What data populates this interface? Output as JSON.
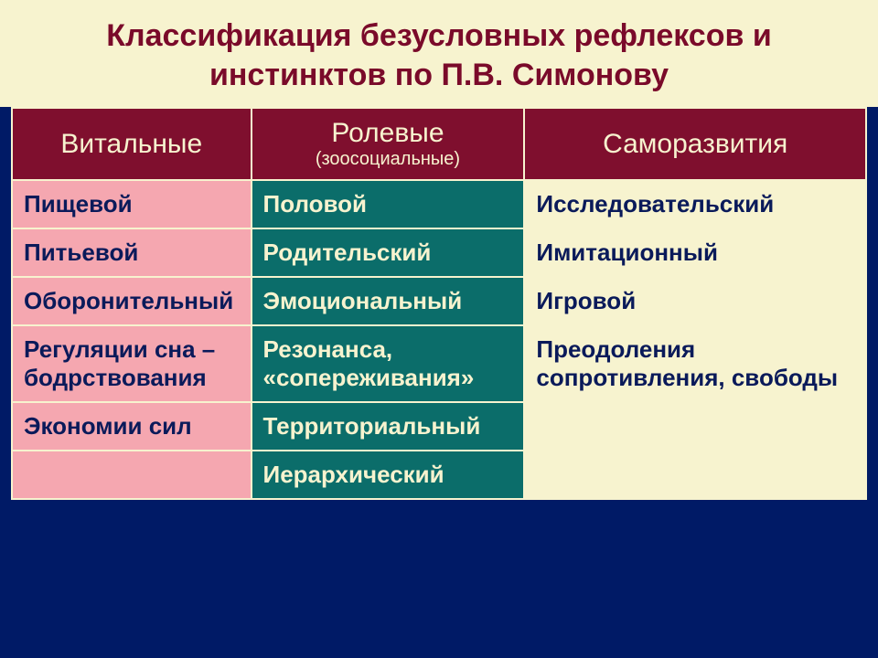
{
  "colors": {
    "slide_bg": "#001a66",
    "title_bg": "#f7f3cf",
    "title_text": "#7a0a2a",
    "header_bg": "#7f0f2e",
    "header_text": "#f7f3cf",
    "col0_bg": "#f5a7b0",
    "col1_bg": "#0b6d6a",
    "col2_bg": "#f7f3cf",
    "col0_text": "#0a1a5a",
    "col1_text": "#f7f3cf",
    "col2_text": "#0a1a5a",
    "border": "#f7f3cf"
  },
  "fonts": {
    "title_size": 34,
    "header_main_size": 30,
    "header_sub_size": 20,
    "cell_size": 26
  },
  "layout": {
    "col_widths_pct": [
      28,
      32,
      40
    ]
  },
  "title": "Классификация безусловных рефлексов и инстинктов по П.В. Симонову",
  "columns": [
    {
      "main": "Витальные",
      "sub": ""
    },
    {
      "main": "Ролевые",
      "sub": "(зоосоциальные)"
    },
    {
      "main": "Саморазвития",
      "sub": ""
    }
  ],
  "rows": [
    [
      "Пищевой",
      "Половой",
      "Исследовательский"
    ],
    [
      "Питьевой",
      "Родительский",
      "Имитационный"
    ],
    [
      "Оборонительный",
      "Эмоциональный",
      "Игровой"
    ],
    [
      "Регуляции сна – бодрствования",
      "Резонанса, «сопереживания»",
      "Преодоления сопротивления, свободы"
    ],
    [
      "Экономии сил",
      "Территориальный",
      ""
    ],
    [
      "",
      "Иерархический",
      ""
    ]
  ]
}
